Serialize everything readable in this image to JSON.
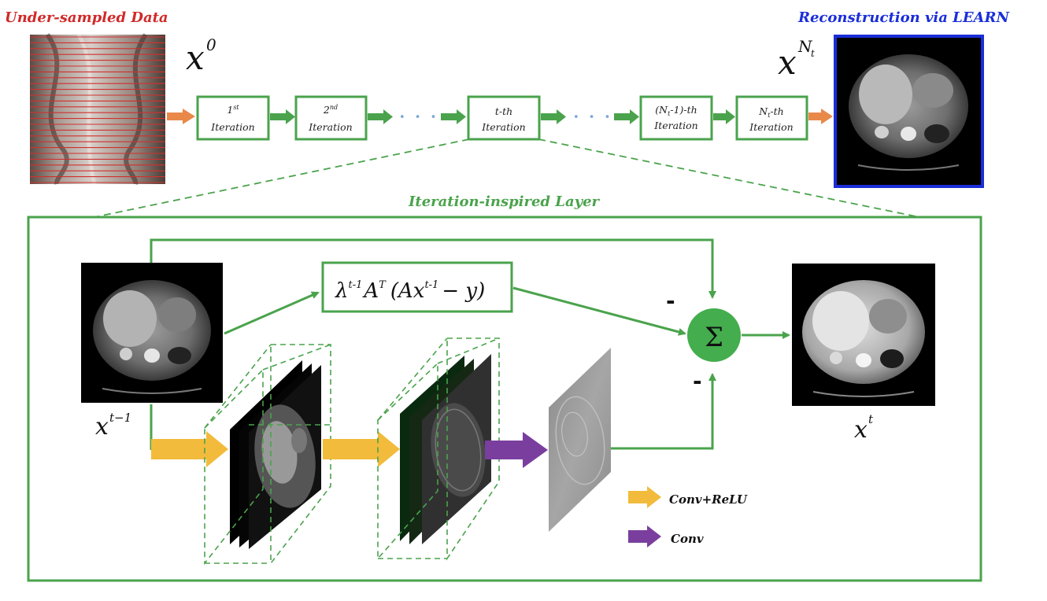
{
  "titles": {
    "input": "Under-sampled Data",
    "output": "Reconstruction via LEARN",
    "layer": "Iteration-inspired Layer"
  },
  "labels": {
    "x0_base": "x",
    "x0_sup": "0",
    "xNt_base": "x",
    "xNt_sup": "N",
    "xNt_subsup": "t",
    "xprev_base": "x",
    "xprev_sup": "t−1",
    "xt_base": "x",
    "xt_sup": "t"
  },
  "pipeline": {
    "boxes": [
      {
        "line1": "1",
        "line1_sup": "st",
        "line2": "Iteration"
      },
      {
        "line1": "2",
        "line1_sup": "nd",
        "line2": "Iteration"
      },
      {
        "line1": "t-th",
        "line1_sup": "",
        "line2": "Iteration"
      },
      {
        "line1": "(N",
        "line1_sub": "t",
        "line1_rest": "-1)-th",
        "line2": "Iteration"
      },
      {
        "line1": "N",
        "line1_sub": "t",
        "line1_rest": "-th",
        "line2": "Iteration"
      }
    ],
    "ellipsis": "• • •"
  },
  "formula": {
    "lambda": "λ",
    "lambda_sup": "t-1",
    "A": "A",
    "A_sup": "T",
    "paren_open": "(",
    "Ax": "Ax",
    "Ax_sup": "t-1",
    "rest": "− y)"
  },
  "sum": {
    "symbol": "Σ",
    "minus_top": "-",
    "minus_bottom": "-"
  },
  "legend": {
    "conv_relu": "Conv+ReLU",
    "conv": "Conv"
  },
  "colors": {
    "green": "#4aa34c",
    "green_fill": "#44ad4d",
    "orange": "#e8894a",
    "yellow": "#f2bb3c",
    "purple": "#7a3f9e",
    "blue": "#1a2ed8",
    "red": "#d02a2a"
  }
}
